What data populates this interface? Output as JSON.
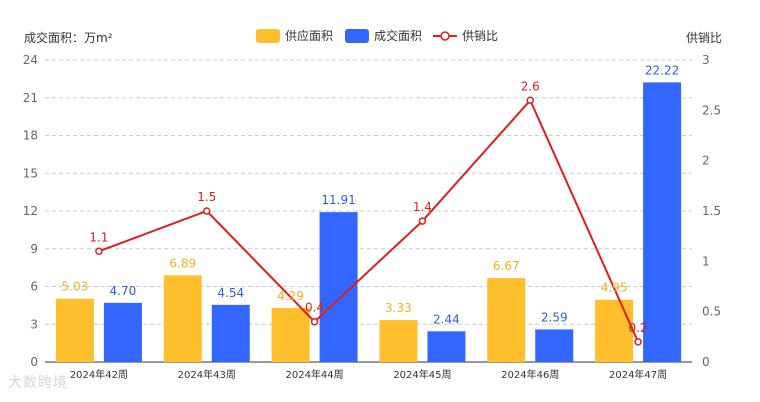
{
  "chart_data": {
    "type": "bar",
    "categories": [
      "2024年42周",
      "2024年43周",
      "2024年44周",
      "2024年45周",
      "2024年46周",
      "2024年47周"
    ],
    "series": [
      {
        "name": "供应面积",
        "type": "bar",
        "axis": "left",
        "color": "#FFBE2C",
        "values": [
          5.03,
          6.89,
          4.29,
          3.33,
          6.67,
          4.95
        ],
        "labels": [
          "5.03",
          "6.89",
          "4.29",
          "3.33",
          "6.67",
          "4.95"
        ]
      },
      {
        "name": "成交面积",
        "type": "bar",
        "axis": "left",
        "color": "#3366FF",
        "values": [
          4.7,
          4.54,
          11.91,
          2.44,
          2.59,
          22.22
        ],
        "labels": [
          "4.70",
          "4.54",
          "11.91",
          "2.44",
          "2.59",
          "22.22"
        ]
      },
      {
        "name": "供销比",
        "type": "line",
        "axis": "right",
        "color": "#DD1E1E",
        "values": [
          1.1,
          1.5,
          0.4,
          1.4,
          2.6,
          0.2
        ],
        "labels": [
          "1.1",
          "1.5",
          "0.4",
          "1.4",
          "2.6",
          "0.2"
        ]
      }
    ],
    "ylabel": "成交面积：万m²",
    "y2label": "供销比",
    "ylim": [
      0,
      24
    ],
    "yticks": [
      "0",
      "3",
      "6",
      "9",
      "12",
      "15",
      "18",
      "21",
      "24"
    ],
    "y2lim": [
      0,
      3
    ],
    "y2ticks": [
      "0",
      "0.5",
      "1",
      "1.5",
      "2",
      "2.5",
      "3"
    ],
    "grid": true,
    "legend_position": "top-center"
  },
  "watermark": "大数跨境"
}
